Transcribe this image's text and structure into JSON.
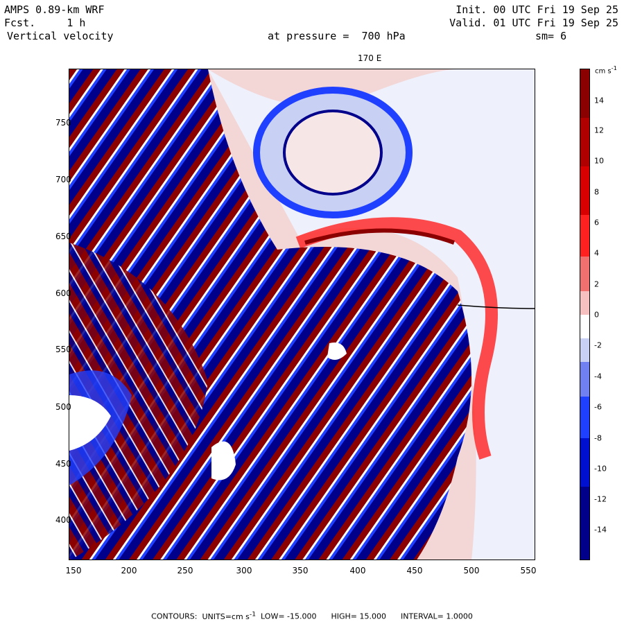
{
  "header": {
    "title_left": "AMPS 0.89-km WRF",
    "fcst_label": "Fcst.",
    "fcst_value": "1 h",
    "field": "Vertical velocity",
    "init": "Init. 00 UTC Fri 19 Sep 25",
    "valid": "Valid. 01 UTC Fri 19 Sep 25",
    "pressure": "at pressure =  700 hPa",
    "smoothing": "sm= 6",
    "meridian_label": "170 E"
  },
  "axes": {
    "y_ticks": [
      "750",
      "700",
      "650",
      "600",
      "550",
      "500",
      "450",
      "400"
    ],
    "x_ticks": [
      "150",
      "200",
      "250",
      "300",
      "350",
      "400",
      "450",
      "500",
      "550"
    ]
  },
  "colorbar": {
    "units": "cm s",
    "units_exp": "-1",
    "labels": [
      "14",
      "12",
      "10",
      "8",
      "6",
      "4",
      "2",
      "0",
      "-2",
      "-4",
      "-6",
      "-8",
      "-10",
      "-12",
      "-14"
    ],
    "colors": {
      "strong_positive": "#8b0000",
      "positive": "#ff2020",
      "weak_positive": "#f7c0c0",
      "zero": "#ffffff",
      "weak_negative": "#c8d0f4",
      "negative": "#2040ff",
      "strong_negative": "#00008b"
    }
  },
  "footer": {
    "contours": "CONTOURS:",
    "units": "UNITS=cm s",
    "units_exp": "-1",
    "low": "LOW= -15.000",
    "high": "HIGH= 15.000",
    "interval": "INTERVAL= 1.0000"
  }
}
